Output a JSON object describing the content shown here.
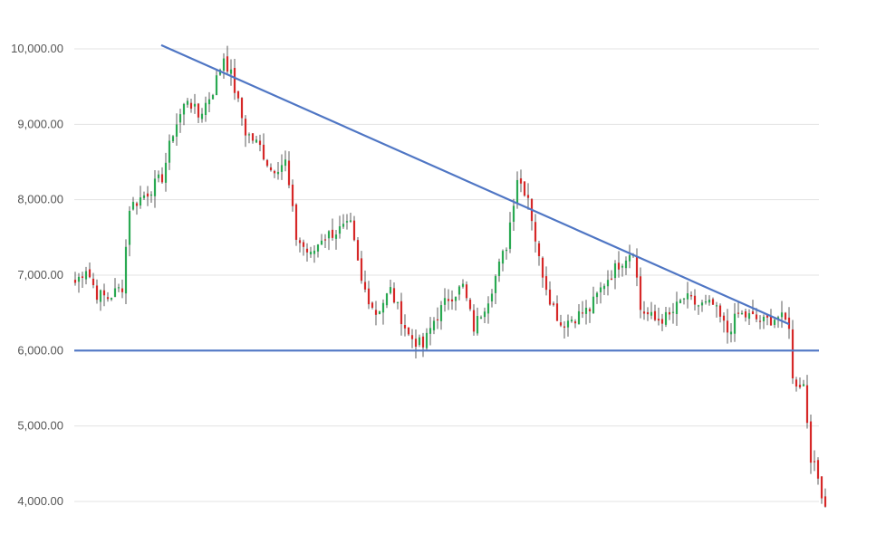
{
  "chart_data": {
    "type": "candlestick",
    "title": "",
    "xlabel": "",
    "ylabel": "",
    "ylim": [
      3600,
      10500
    ],
    "grid": true,
    "y_ticks": [
      {
        "value": 10000,
        "label": "10,000.00"
      },
      {
        "value": 9000,
        "label": "9,000.00"
      },
      {
        "value": 8000,
        "label": "8,000.00"
      },
      {
        "value": 7000,
        "label": "7,000.00"
      },
      {
        "value": 6000,
        "label": "6,000.00"
      },
      {
        "value": 5000,
        "label": "5,000.00"
      },
      {
        "value": 4000,
        "label": "4,000.00"
      }
    ],
    "price_path": [
      [
        0,
        6900
      ],
      [
        3,
        7100
      ],
      [
        6,
        6750
      ],
      [
        9,
        6700
      ],
      [
        13,
        6850
      ],
      [
        15,
        7900
      ],
      [
        20,
        8100
      ],
      [
        24,
        8300
      ],
      [
        27,
        8900
      ],
      [
        31,
        9350
      ],
      [
        34,
        9100
      ],
      [
        38,
        9450
      ],
      [
        41,
        9900
      ],
      [
        43,
        9650
      ],
      [
        47,
        8900
      ],
      [
        51,
        8700
      ],
      [
        54,
        8400
      ],
      [
        58,
        8500
      ],
      [
        61,
        7500
      ],
      [
        65,
        7250
      ],
      [
        68,
        7500
      ],
      [
        73,
        7600
      ],
      [
        76,
        7650
      ],
      [
        79,
        6900
      ],
      [
        83,
        6500
      ],
      [
        87,
        6800
      ],
      [
        92,
        6200
      ],
      [
        96,
        6050
      ],
      [
        99,
        6400
      ],
      [
        103,
        6700
      ],
      [
        107,
        6850
      ],
      [
        110,
        6300
      ],
      [
        114,
        6700
      ],
      [
        119,
        7400
      ],
      [
        122,
        8300
      ],
      [
        125,
        8050
      ],
      [
        128,
        7200
      ],
      [
        131,
        6700
      ],
      [
        134,
        6350
      ],
      [
        138,
        6450
      ],
      [
        142,
        6550
      ],
      [
        146,
        6900
      ],
      [
        150,
        7150
      ],
      [
        154,
        7350
      ],
      [
        156,
        6550
      ],
      [
        160,
        6400
      ],
      [
        164,
        6450
      ],
      [
        168,
        6700
      ],
      [
        172,
        6600
      ],
      [
        176,
        6600
      ],
      [
        180,
        6250
      ],
      [
        183,
        6480
      ],
      [
        186,
        6450
      ],
      [
        190,
        6380
      ],
      [
        194,
        6450
      ],
      [
        197,
        6350
      ],
      [
        198,
        5600
      ],
      [
        201,
        5550
      ],
      [
        203,
        4600
      ],
      [
        205,
        4300
      ],
      [
        207,
        3950
      ]
    ],
    "annotations": [
      {
        "type": "trendline",
        "label": "",
        "from": {
          "x": 0,
          "y": 10050
        },
        "to": {
          "x": 1,
          "y": 6350
        }
      },
      {
        "type": "support_line",
        "label": "",
        "y": 6000
      }
    ],
    "colors": {
      "up": "#2aa952",
      "down": "#d62828",
      "trendline": "#4f76c4",
      "grid": "#e3e3e3"
    }
  }
}
